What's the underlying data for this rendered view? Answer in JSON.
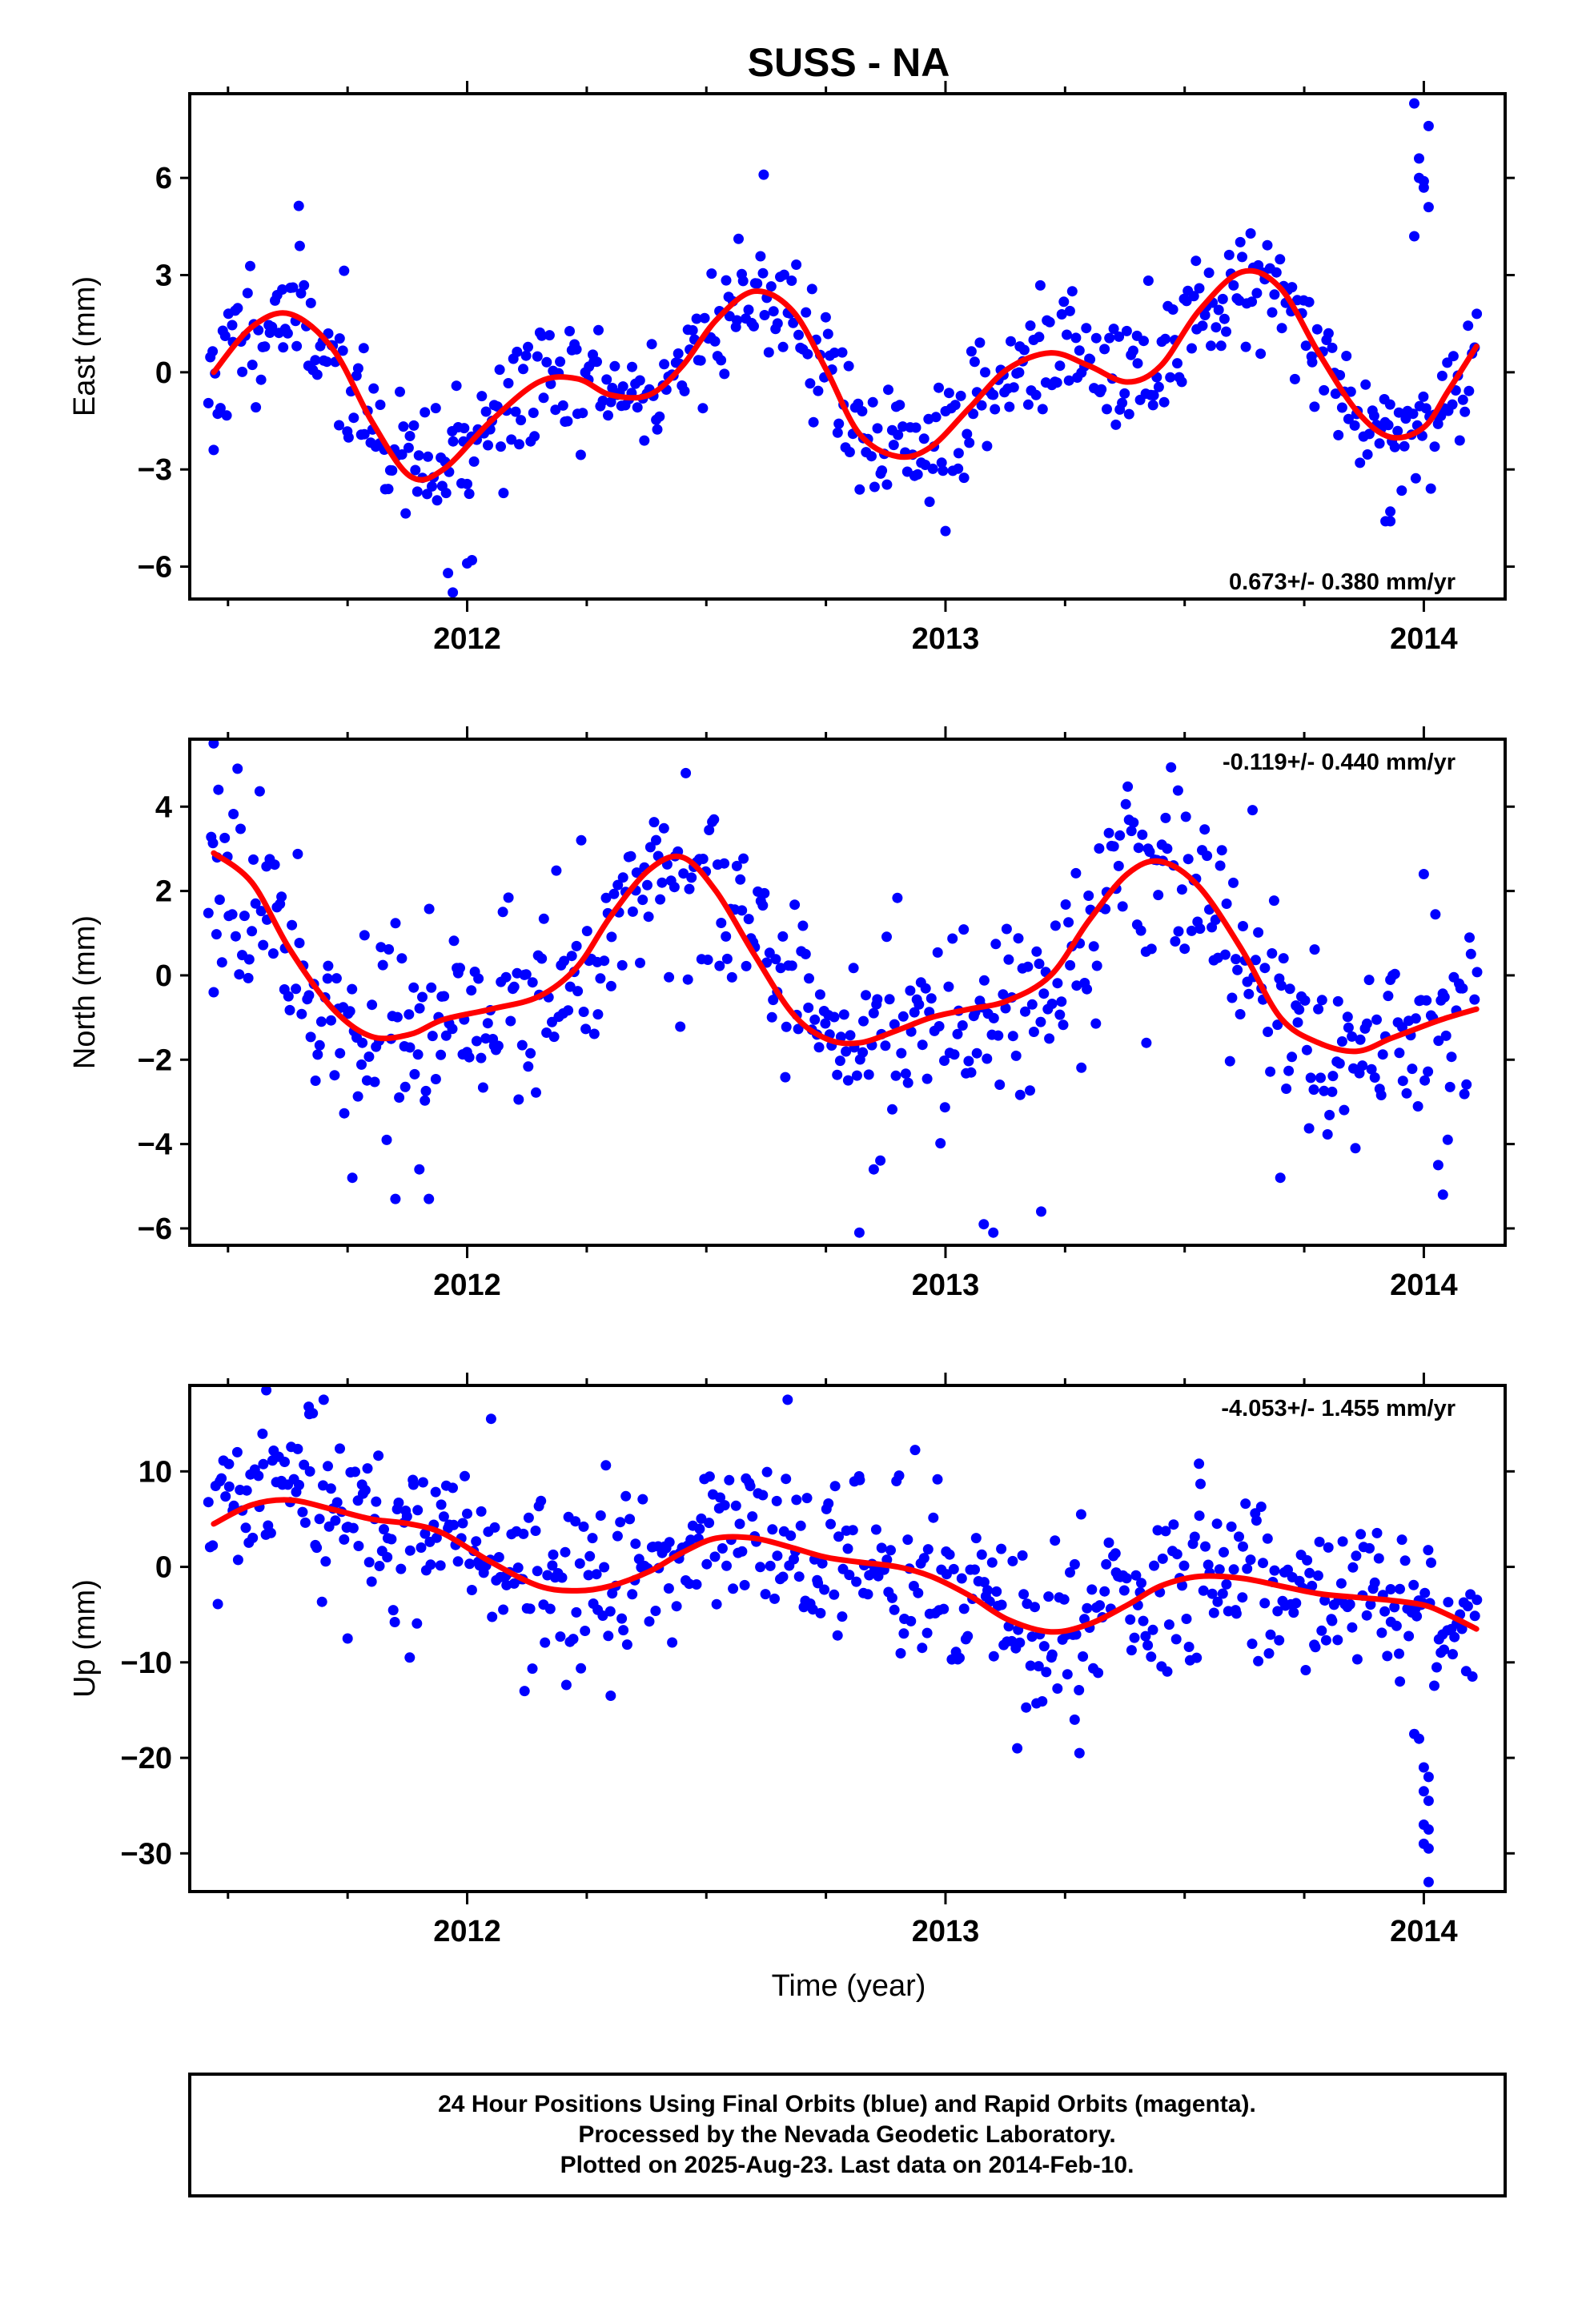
{
  "title": "SUSS - NA",
  "footer": {
    "line1": "24 Hour Positions Using Final Orbits (blue) and Rapid Orbits (magenta).",
    "line2": "Processed by the Nevada Geodetic Laboratory.",
    "line3": "Plotted on 2025-Aug-23. Last data on 2014-Feb-10."
  },
  "colors": {
    "points": "#0000ff",
    "fit": "#ff0000",
    "frame": "#000000"
  },
  "chart_data": [
    {
      "type": "scatter",
      "ylabel": "East (mm)",
      "xlabel": "",
      "xlim": [
        2011.42,
        2014.17
      ],
      "ylim": [
        -7.0,
        8.6
      ],
      "xticks": [
        2012,
        2013,
        2014
      ],
      "yticks": [
        -6,
        -3,
        0,
        3,
        6
      ],
      "rate": "0.673+/- 0.380 mm/yr",
      "rate_position": "bottom-right",
      "fit": {
        "x": [
          2011.47,
          2011.55,
          2011.63,
          2011.72,
          2011.8,
          2011.88,
          2011.95,
          2012.05,
          2012.15,
          2012.23,
          2012.3,
          2012.38,
          2012.45,
          2012.52,
          2012.6,
          2012.68,
          2012.75,
          2012.82,
          2012.9,
          2012.97,
          2013.05,
          2013.13,
          2013.22,
          2013.3,
          2013.38,
          2013.45,
          2013.53,
          2013.62,
          2013.7,
          2013.78,
          2013.86,
          2013.93,
          2014.0,
          2014.05,
          2014.11
        ],
        "y": [
          0.0,
          1.4,
          1.8,
          0.7,
          -1.5,
          -3.2,
          -3.0,
          -1.5,
          -0.3,
          -0.2,
          -0.7,
          -0.7,
          0.2,
          1.6,
          2.5,
          1.9,
          0.1,
          -1.9,
          -2.6,
          -2.3,
          -1.1,
          0.1,
          0.6,
          0.2,
          -0.3,
          0.2,
          1.9,
          3.1,
          2.6,
          0.6,
          -1.2,
          -2.0,
          -1.7,
          -0.6,
          0.8
        ]
      },
      "scatter": {
        "anchors_x": [
          2011.47,
          2011.55,
          2011.63,
          2011.72,
          2011.8,
          2011.88,
          2011.95,
          2012.05,
          2012.15,
          2012.23,
          2012.3,
          2012.38,
          2012.45,
          2012.52,
          2012.6,
          2012.68,
          2012.75,
          2012.82,
          2012.9,
          2012.97,
          2013.05,
          2013.13,
          2013.22,
          2013.3,
          2013.38,
          2013.45,
          2013.53,
          2013.62,
          2013.7,
          2013.78,
          2013.86,
          2013.93,
          2014.0,
          2014.05,
          2014.11
        ],
        "anchors_y": [
          0.0,
          1.4,
          1.8,
          0.7,
          -1.5,
          -3.2,
          -3.0,
          -1.5,
          -0.3,
          -0.2,
          -0.7,
          -0.7,
          0.2,
          1.6,
          2.5,
          1.9,
          0.1,
          -1.9,
          -2.6,
          -2.3,
          -1.1,
          0.1,
          0.6,
          0.2,
          -0.3,
          0.2,
          1.9,
          3.1,
          2.6,
          0.6,
          -1.2,
          -2.0,
          -1.7,
          -0.6,
          0.8
        ],
        "x_start": 2011.46,
        "x_end": 2014.11,
        "count": 560,
        "spread": 1.0,
        "seed": 11,
        "extra_points": [
          [
            2011.97,
            -6.8
          ],
          [
            2011.96,
            -6.2
          ],
          [
            2012.0,
            -5.9
          ],
          [
            2012.01,
            -5.8
          ],
          [
            2012.62,
            6.1
          ],
          [
            2013.0,
            -4.9
          ],
          [
            2013.98,
            8.3
          ],
          [
            2013.99,
            6.6
          ],
          [
            2013.99,
            6.0
          ],
          [
            2014.0,
            5.9
          ],
          [
            2014.0,
            5.7
          ],
          [
            2014.01,
            7.6
          ],
          [
            2014.01,
            5.1
          ],
          [
            2013.98,
            4.2
          ],
          [
            2013.92,
            -4.6
          ],
          [
            2013.93,
            -4.6
          ],
          [
            2013.93,
            -4.3
          ],
          [
            2011.47,
            -2.4
          ],
          [
            2011.65,
            3.9
          ]
        ]
      }
    },
    {
      "type": "scatter",
      "ylabel": "North (mm)",
      "xlabel": "",
      "xlim": [
        2011.42,
        2014.17
      ],
      "ylim": [
        -6.4,
        5.6
      ],
      "xticks": [
        2012,
        2013,
        2014
      ],
      "yticks": [
        -6,
        -4,
        -2,
        0,
        2,
        4
      ],
      "rate": "-0.119+/- 0.440 mm/yr",
      "rate_position": "top-right",
      "fit": {
        "x": [
          2011.47,
          2011.55,
          2011.63,
          2011.72,
          2011.8,
          2011.88,
          2011.95,
          2012.05,
          2012.15,
          2012.23,
          2012.3,
          2012.38,
          2012.45,
          2012.52,
          2012.6,
          2012.68,
          2012.75,
          2012.82,
          2012.9,
          2012.97,
          2013.05,
          2013.13,
          2013.22,
          2013.3,
          2013.38,
          2013.45,
          2013.53,
          2013.62,
          2013.7,
          2013.78,
          2013.86,
          2013.93,
          2014.0,
          2014.05,
          2014.11
        ],
        "y": [
          2.9,
          2.2,
          0.6,
          -0.8,
          -1.45,
          -1.4,
          -1.05,
          -0.8,
          -0.5,
          0.2,
          1.4,
          2.5,
          2.8,
          2.0,
          0.5,
          -0.9,
          -1.5,
          -1.6,
          -1.3,
          -1.0,
          -0.8,
          -0.6,
          0.0,
          1.3,
          2.4,
          2.7,
          2.1,
          0.6,
          -1.0,
          -1.6,
          -1.8,
          -1.5,
          -1.2,
          -1.0,
          -0.8
        ]
      },
      "scatter": {
        "anchors_x": [
          2011.47,
          2011.55,
          2011.63,
          2011.72,
          2011.8,
          2011.88,
          2011.95,
          2012.05,
          2012.15,
          2012.23,
          2012.3,
          2012.38,
          2012.45,
          2012.52,
          2012.6,
          2012.68,
          2012.75,
          2012.82,
          2012.9,
          2012.97,
          2013.05,
          2013.13,
          2013.22,
          2013.3,
          2013.38,
          2013.45,
          2013.53,
          2013.62,
          2013.7,
          2013.78,
          2013.86,
          2013.93,
          2014.0,
          2014.05,
          2014.11
        ],
        "anchors_y": [
          2.9,
          2.2,
          0.6,
          -0.8,
          -1.45,
          -1.4,
          -1.05,
          -0.8,
          -0.5,
          0.2,
          1.4,
          2.5,
          2.8,
          2.0,
          0.5,
          -0.9,
          -1.5,
          -1.6,
          -1.3,
          -1.0,
          -0.8,
          -0.6,
          0.0,
          1.3,
          2.4,
          2.7,
          2.1,
          0.6,
          -1.0,
          -1.6,
          -1.8,
          -1.5,
          -1.2,
          -1.0,
          -0.8
        ],
        "x_start": 2011.46,
        "x_end": 2014.11,
        "count": 560,
        "spread": 1.1,
        "seed": 23,
        "extra_points": [
          [
            2011.47,
            5.5
          ],
          [
            2011.48,
            4.4
          ],
          [
            2011.52,
            4.9
          ],
          [
            2011.47,
            -0.4
          ],
          [
            2011.76,
            -4.8
          ],
          [
            2011.85,
            -5.3
          ],
          [
            2011.92,
            -5.3
          ],
          [
            2011.9,
            -4.6
          ],
          [
            2012.82,
            -6.1
          ],
          [
            2013.08,
            -5.9
          ],
          [
            2013.1,
            -6.1
          ],
          [
            2013.2,
            -5.6
          ],
          [
            2012.85,
            -4.6
          ],
          [
            2013.42,
            -1.6
          ],
          [
            2014.0,
            2.4
          ],
          [
            2014.03,
            -4.5
          ],
          [
            2014.04,
            -5.2
          ],
          [
            2014.05,
            -3.9
          ],
          [
            2013.7,
            -4.8
          ]
        ]
      }
    },
    {
      "type": "scatter",
      "ylabel": "Up (mm)",
      "xlabel": "Time (year)",
      "xlim": [
        2011.42,
        2014.17
      ],
      "ylim": [
        -34,
        19
      ],
      "xticks": [
        2012,
        2013,
        2014
      ],
      "yticks": [
        -30,
        -20,
        -10,
        0,
        10
      ],
      "rate": "-4.053+/- 1.455 mm/yr",
      "rate_position": "top-right",
      "fit": {
        "x": [
          2011.47,
          2011.55,
          2011.63,
          2011.72,
          2011.8,
          2011.88,
          2011.95,
          2012.05,
          2012.15,
          2012.23,
          2012.3,
          2012.38,
          2012.45,
          2012.52,
          2012.6,
          2012.68,
          2012.75,
          2012.82,
          2012.9,
          2012.97,
          2013.05,
          2013.13,
          2013.22,
          2013.3,
          2013.38,
          2013.45,
          2013.53,
          2013.62,
          2013.7,
          2013.78,
          2013.86,
          2013.93,
          2014.0,
          2014.05,
          2014.11
        ],
        "y": [
          4.5,
          6.5,
          7.0,
          6.0,
          5.0,
          4.5,
          3.5,
          0.5,
          -2.0,
          -2.5,
          -2.0,
          -0.5,
          1.5,
          3.0,
          3.0,
          2.0,
          1.0,
          0.5,
          0.0,
          -1.0,
          -3.0,
          -5.5,
          -6.8,
          -6.0,
          -4.0,
          -2.0,
          -1.0,
          -1.2,
          -2.0,
          -2.8,
          -3.2,
          -3.5,
          -4.0,
          -5.0,
          -6.5
        ]
      },
      "scatter": {
        "anchors_x": [
          2011.47,
          2011.55,
          2011.63,
          2011.72,
          2011.8,
          2011.88,
          2011.95,
          2012.05,
          2012.15,
          2012.23,
          2012.3,
          2012.38,
          2012.45,
          2012.52,
          2012.6,
          2012.68,
          2012.75,
          2012.82,
          2012.9,
          2012.97,
          2013.05,
          2013.13,
          2013.22,
          2013.3,
          2013.38,
          2013.45,
          2013.53,
          2013.62,
          2013.7,
          2013.78,
          2013.86,
          2013.93,
          2014.0,
          2014.05,
          2014.11
        ],
        "anchors_y": [
          4.5,
          6.5,
          7.0,
          6.0,
          5.0,
          4.5,
          3.5,
          0.5,
          -2.0,
          -2.5,
          -2.0,
          -0.5,
          1.5,
          3.0,
          3.0,
          2.0,
          1.0,
          0.5,
          0.0,
          -1.0,
          -3.0,
          -5.5,
          -6.8,
          -6.0,
          -4.0,
          -2.0,
          -1.0,
          -1.2,
          -2.0,
          -2.8,
          -3.2,
          -3.5,
          -4.0,
          -5.0,
          -6.5
        ]
      },
      "scatter_params": {
        "x_start": 2011.46,
        "x_end": 2014.11,
        "count": 600,
        "spread": 4.2,
        "seed": 37,
        "extra_points": [
          [
            2011.58,
            18.5
          ],
          [
            2011.7,
            17.5
          ],
          [
            2011.67,
            16.0
          ],
          [
            2012.67,
            17.5
          ],
          [
            2012.05,
            15.5
          ],
          [
            2012.12,
            -13.0
          ],
          [
            2012.3,
            -13.5
          ],
          [
            2011.88,
            -9.5
          ],
          [
            2011.75,
            -7.5
          ],
          [
            2013.15,
            -19.0
          ],
          [
            2013.28,
            -19.5
          ],
          [
            2013.27,
            -16.0
          ],
          [
            2013.53,
            10.8
          ],
          [
            2013.98,
            -17.5
          ],
          [
            2013.99,
            -18.0
          ],
          [
            2014.0,
            -21.0
          ],
          [
            2014.01,
            -22.0
          ],
          [
            2014.0,
            -23.5
          ],
          [
            2014.01,
            -24.5
          ],
          [
            2014.0,
            -27.0
          ],
          [
            2014.01,
            -27.5
          ],
          [
            2014.0,
            -29.0
          ],
          [
            2014.01,
            -29.5
          ],
          [
            2014.01,
            -33.0
          ],
          [
            2013.95,
            -12.0
          ]
        ]
      }
    }
  ]
}
